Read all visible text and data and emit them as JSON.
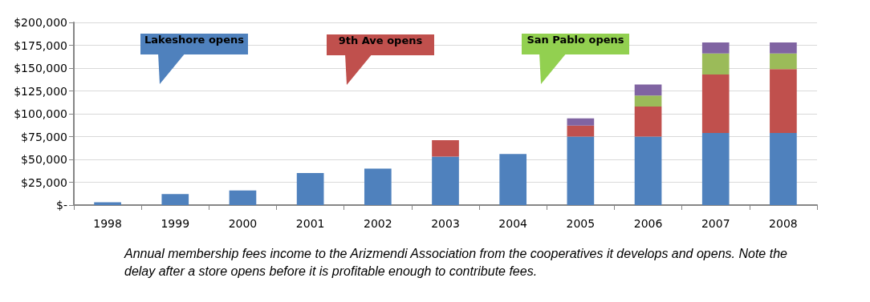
{
  "chart_data": {
    "type": "bar",
    "stacked": true,
    "grid": "y",
    "categories": [
      "1998",
      "1999",
      "2000",
      "2001",
      "2002",
      "2003",
      "2004",
      "2005",
      "2006",
      "2007",
      "2008"
    ],
    "series": [
      {
        "color": "#4f81bd",
        "values": [
          3000,
          12000,
          16000,
          35000,
          40000,
          53000,
          56000,
          75000,
          75000,
          79000,
          79000
        ]
      },
      {
        "color": "#c0504d",
        "values": [
          0,
          0,
          0,
          0,
          0,
          18000,
          0,
          12000,
          33000,
          64000,
          70000
        ]
      },
      {
        "color": "#9bbb59",
        "values": [
          0,
          0,
          0,
          0,
          0,
          0,
          0,
          0,
          12000,
          23000,
          17000
        ]
      },
      {
        "color": "#8064a2",
        "values": [
          0,
          0,
          0,
          0,
          0,
          0,
          0,
          8000,
          12000,
          12000,
          12000
        ]
      }
    ],
    "ylim": [
      0,
      200000
    ],
    "yticks": [
      {
        "value": 0,
        "label": "$-"
      },
      {
        "value": 25000,
        "label": "$25,000"
      },
      {
        "value": 50000,
        "label": "$50,000"
      },
      {
        "value": 75000,
        "label": "$75,000"
      },
      {
        "value": 100000,
        "label": "$100,000"
      },
      {
        "value": 125000,
        "label": "$125,000"
      },
      {
        "value": 150000,
        "label": "$150,000"
      },
      {
        "value": 175000,
        "label": "$175,000"
      },
      {
        "value": 200000,
        "label": "$200,000"
      }
    ],
    "annotations": [
      "Lakeshore opens",
      "9th Ave opens",
      "San Pablo opens",
      "Annual membership fees income to the Arizmendi Association from the cooperatives it develops and opens.  Note the delay after a store opens before it is profitable enough to contribute fees."
    ]
  }
}
